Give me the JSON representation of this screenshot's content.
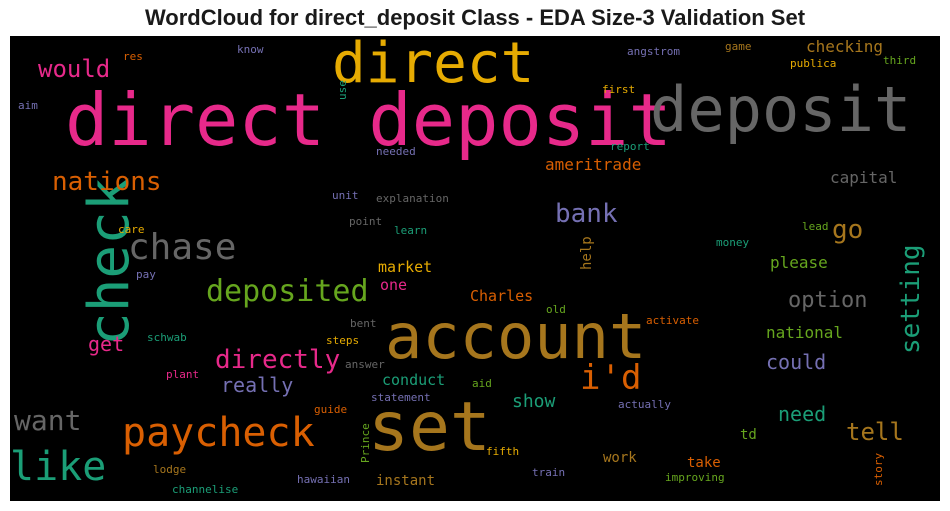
{
  "chart_data": {
    "type": "wordcloud",
    "title": "WordCloud for direct_deposit Class - EDA Size-3 Validation Set",
    "background": "#000000",
    "words": [
      {
        "text": "direct deposit",
        "color": "#e7298a"
      },
      {
        "text": "deposit",
        "color": "#666666"
      },
      {
        "text": "direct",
        "color": "#e6ab02"
      },
      {
        "text": "account",
        "color": "#a6761d"
      },
      {
        "text": "set",
        "color": "#a6761d"
      },
      {
        "text": "check",
        "color": "#1b9e77"
      },
      {
        "text": "paycheck",
        "color": "#d95f02"
      },
      {
        "text": "like",
        "color": "#1b9e77"
      },
      {
        "text": "chase",
        "color": "#666666"
      },
      {
        "text": "deposited",
        "color": "#66a61e"
      },
      {
        "text": "i'd",
        "color": "#d95f02"
      },
      {
        "text": "directly",
        "color": "#e7298a"
      },
      {
        "text": "want",
        "color": "#666666"
      },
      {
        "text": "would",
        "color": "#e7298a"
      },
      {
        "text": "nations",
        "color": "#d95f02"
      },
      {
        "text": "bank",
        "color": "#7570b3"
      },
      {
        "text": "setting",
        "color": "#1b9e77"
      },
      {
        "text": "go",
        "color": "#a6761d"
      },
      {
        "text": "get",
        "color": "#e7298a"
      },
      {
        "text": "option",
        "color": "#666666"
      },
      {
        "text": "tell",
        "color": "#a6761d"
      },
      {
        "text": "really",
        "color": "#7570b3"
      },
      {
        "text": "could",
        "color": "#7570b3"
      },
      {
        "text": "need",
        "color": "#1b9e77"
      },
      {
        "text": "show",
        "color": "#1b9e77"
      },
      {
        "text": "capital",
        "color": "#666666"
      },
      {
        "text": "ameritrade",
        "color": "#d95f02"
      },
      {
        "text": "checking",
        "color": "#a6761d"
      },
      {
        "text": "please",
        "color": "#66a61e"
      },
      {
        "text": "national",
        "color": "#66a61e"
      },
      {
        "text": "conduct",
        "color": "#1b9e77"
      },
      {
        "text": "Charles",
        "color": "#d95f02"
      },
      {
        "text": "market",
        "color": "#e6ab02"
      },
      {
        "text": "one",
        "color": "#e7298a"
      },
      {
        "text": "take",
        "color": "#d95f02"
      },
      {
        "text": "work",
        "color": "#a6761d"
      },
      {
        "text": "instant",
        "color": "#a6761d"
      },
      {
        "text": "td",
        "color": "#66a61e"
      },
      {
        "text": "help",
        "color": "#a6761d"
      },
      {
        "text": "res",
        "color": "#d95f02"
      },
      {
        "text": "know",
        "color": "#7570b3"
      },
      {
        "text": "angstrom",
        "color": "#7570b3"
      },
      {
        "text": "game",
        "color": "#a6761d"
      },
      {
        "text": "publica",
        "color": "#e6ab02"
      },
      {
        "text": "third",
        "color": "#66a61e"
      },
      {
        "text": "aim",
        "color": "#7570b3"
      },
      {
        "text": "use",
        "color": "#1b9e77"
      },
      {
        "text": "first",
        "color": "#e6ab02"
      },
      {
        "text": "needed",
        "color": "#7570b3"
      },
      {
        "text": "report",
        "color": "#1b9e77"
      },
      {
        "text": "explanation",
        "color": "#666666"
      },
      {
        "text": "unit",
        "color": "#7570b3"
      },
      {
        "text": "point",
        "color": "#666666"
      },
      {
        "text": "learn",
        "color": "#1b9e77"
      },
      {
        "text": "care",
        "color": "#e6ab02"
      },
      {
        "text": "pay",
        "color": "#7570b3"
      },
      {
        "text": "lead",
        "color": "#66a61e"
      },
      {
        "text": "money",
        "color": "#1b9e77"
      },
      {
        "text": "old",
        "color": "#66a61e"
      },
      {
        "text": "activate",
        "color": "#d95f02"
      },
      {
        "text": "bent",
        "color": "#666666"
      },
      {
        "text": "schwab",
        "color": "#1b9e77"
      },
      {
        "text": "steps",
        "color": "#e6ab02"
      },
      {
        "text": "answer",
        "color": "#666666"
      },
      {
        "text": "plant",
        "color": "#e7298a"
      },
      {
        "text": "aid",
        "color": "#66a61e"
      },
      {
        "text": "statement",
        "color": "#7570b3"
      },
      {
        "text": "actually",
        "color": "#7570b3"
      },
      {
        "text": "guide",
        "color": "#d95f02"
      },
      {
        "text": "Prince",
        "color": "#66a61e"
      },
      {
        "text": "fifth",
        "color": "#e6ab02"
      },
      {
        "text": "lodge",
        "color": "#a6761d"
      },
      {
        "text": "train",
        "color": "#7570b3"
      },
      {
        "text": "improving",
        "color": "#66a61e"
      },
      {
        "text": "story",
        "color": "#d95f02"
      },
      {
        "text": "channelise",
        "color": "#1b9e77"
      },
      {
        "text": "hawaiian",
        "color": "#7570b3"
      }
    ]
  }
}
